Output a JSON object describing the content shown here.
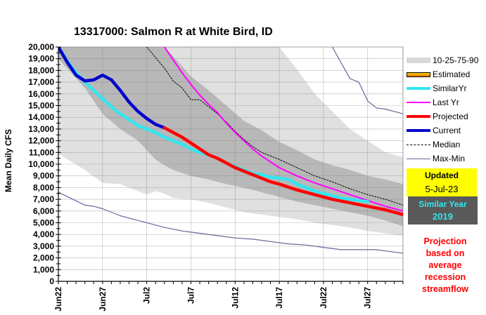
{
  "header": {
    "title": "13317000: Salmon R at White Bird, ID"
  },
  "legend": {
    "items": [
      {
        "label": "10-25-75-90",
        "icon": "band-swatch",
        "color": "#d9d9d9"
      },
      {
        "label": "Estimated",
        "icon": "estimated-swatch",
        "color": "#ffa500"
      },
      {
        "label": "SimilarYr",
        "icon": "line-swatch",
        "color": "#33e6ef"
      },
      {
        "label": "Last Yr",
        "icon": "line-swatch",
        "color": "#ff00ff"
      },
      {
        "label": "Projected",
        "icon": "line-swatch",
        "color": "#ff0000"
      },
      {
        "label": "Current",
        "icon": "line-swatch",
        "color": "#0000cc"
      },
      {
        "label": "Median",
        "icon": "dashed-line-swatch",
        "color": "#000000"
      },
      {
        "label": "Max-Min",
        "icon": "line-swatch",
        "color": "#666699"
      }
    ]
  },
  "info": {
    "updated_label": "Updated",
    "updated_date": "5-Jul-23",
    "similar_label": "Similar Year",
    "similar_year": "2019",
    "note_lines": [
      "Projection",
      "based on",
      "average",
      "recession",
      "streamflow"
    ]
  },
  "chart_data": {
    "type": "line",
    "title": "13317000: Salmon R at White Bird, ID",
    "xlabel": "",
    "ylabel": "Mean Daily CFS",
    "ylim": [
      0,
      20000
    ],
    "xlim_days": [
      0,
      39
    ],
    "x_start": "Jun22",
    "x_tick_labels": [
      "Jun22",
      "Jun27",
      "Jul2",
      "Jul7",
      "Jul12",
      "Jul17",
      "Jul22",
      "Jul27"
    ],
    "x_tick_days": [
      0,
      5,
      10,
      15,
      20,
      25,
      30,
      35
    ],
    "y_tick_labels": [
      "0",
      "1,000",
      "2,000",
      "3,000",
      "4,000",
      "5,000",
      "6,000",
      "7,000",
      "8,000",
      "9,000",
      "10,000",
      "11,000",
      "12,000",
      "13,000",
      "14,000",
      "15,000",
      "16,000",
      "17,000",
      "18,000",
      "19,000",
      "20,000"
    ],
    "y_ticks": [
      0,
      1000,
      2000,
      3000,
      4000,
      5000,
      6000,
      7000,
      8000,
      9000,
      10000,
      11000,
      12000,
      13000,
      14000,
      15000,
      16000,
      17000,
      18000,
      19000,
      20000
    ],
    "grid": true,
    "legend_position": "right",
    "bands": {
      "x": [
        0,
        3,
        5,
        7,
        9,
        10,
        11,
        12,
        13,
        15,
        17,
        19,
        21,
        23,
        25,
        27,
        29,
        31,
        33,
        35,
        37,
        39
      ],
      "p10": [
        10900,
        9500,
        8400,
        8300,
        7700,
        7400,
        7700,
        7500,
        7100,
        7000,
        6700,
        6300,
        5900,
        5700,
        5500,
        5300,
        5000,
        4800,
        4600,
        4300,
        4100,
        3900
      ],
      "p25": [
        19000,
        16500,
        14300,
        13000,
        12000,
        11200,
        10400,
        9900,
        9500,
        9000,
        8700,
        8300,
        8000,
        7600,
        7200,
        6800,
        6500,
        6200,
        5900,
        5600,
        5200,
        4700
      ],
      "p75": [
        20000,
        20000,
        20000,
        20000,
        20000,
        20000,
        20000,
        20000,
        19200,
        17500,
        16300,
        15000,
        13700,
        12900,
        11900,
        11200,
        10400,
        9900,
        9500,
        9000,
        8700,
        8300
      ],
      "p90": [
        20000,
        20000,
        20000,
        20000,
        20000,
        20000,
        20000,
        20000,
        20000,
        20000,
        20000,
        20000,
        20000,
        20000,
        20000,
        18100,
        16000,
        14500,
        13000,
        12000,
        11000,
        10600
      ]
    },
    "series": [
      {
        "name": "Max",
        "color": "#666699",
        "x": [
          31,
          33,
          34,
          35,
          36,
          37,
          39
        ],
        "values": [
          20000,
          17300,
          17000,
          15400,
          14800,
          14700,
          14300
        ]
      },
      {
        "name": "Min",
        "color": "#666699",
        "x": [
          0,
          3,
          4,
          5,
          6,
          7,
          8,
          9,
          11,
          12,
          14,
          15,
          16,
          18,
          20,
          22,
          24,
          26,
          28,
          30,
          32,
          34,
          36,
          38,
          39
        ],
        "values": [
          7600,
          6500,
          6400,
          6200,
          5900,
          5600,
          5400,
          5200,
          4800,
          4600,
          4300,
          4200,
          4100,
          3900,
          3700,
          3600,
          3400,
          3200,
          3100,
          2900,
          2700,
          2700,
          2700,
          2500,
          2400
        ]
      },
      {
        "name": "Median",
        "color": "#000000",
        "dashed": true,
        "x": [
          10,
          12,
          13,
          14,
          15,
          16,
          17,
          18,
          19,
          20,
          21,
          22,
          23,
          25,
          27,
          29,
          31,
          33,
          35,
          37,
          39
        ],
        "values": [
          20000,
          18200,
          17100,
          16500,
          15500,
          15500,
          14900,
          14300,
          13600,
          12800,
          12100,
          11500,
          11000,
          10400,
          9700,
          9000,
          8500,
          7900,
          7400,
          7000,
          6500
        ]
      },
      {
        "name": "Last Yr",
        "color": "#ff00ff",
        "x": [
          12,
          13,
          14,
          15,
          16,
          17,
          18,
          19,
          20,
          21,
          22,
          23,
          24,
          25,
          27,
          29,
          31,
          33,
          35,
          37,
          39
        ],
        "values": [
          20000,
          18900,
          17800,
          16800,
          15900,
          15100,
          14400,
          13500,
          12700,
          12000,
          11300,
          10700,
          10200,
          9700,
          9000,
          8400,
          7900,
          7400,
          6900,
          6400,
          6000
        ]
      },
      {
        "name": "SimilarYr",
        "color": "#33e6ef",
        "x": [
          0,
          1,
          2,
          3,
          4,
          5,
          6,
          7,
          8,
          9,
          10,
          11,
          12,
          13,
          14,
          15,
          16,
          17,
          18,
          19,
          20,
          21,
          22,
          23,
          24,
          25,
          26,
          27,
          28,
          29,
          30,
          31,
          32,
          33,
          34,
          35
        ],
        "values": [
          20000,
          18800,
          17800,
          17000,
          16300,
          15600,
          14900,
          14300,
          13800,
          13300,
          13000,
          12700,
          12300,
          12000,
          11700,
          11300,
          11000,
          10800,
          10500,
          10100,
          9800,
          9500,
          9200,
          9100,
          8900,
          8800,
          8700,
          8300,
          8000,
          7700,
          7500,
          7300,
          7100,
          7000,
          6900,
          6800
        ]
      },
      {
        "name": "Current",
        "color": "#0000cc",
        "x": [
          0,
          1,
          2,
          3,
          4,
          5,
          6,
          7,
          8,
          9,
          10,
          11,
          12
        ],
        "values": [
          20000,
          18700,
          17600,
          17100,
          17200,
          17600,
          17200,
          16300,
          15300,
          14500,
          13900,
          13400,
          13100
        ]
      },
      {
        "name": "Projected",
        "color": "#ff0000",
        "x": [
          12,
          13,
          14,
          15,
          16,
          17,
          18,
          19,
          20,
          21,
          22,
          23,
          24,
          25,
          27,
          29,
          31,
          33,
          35,
          37,
          39
        ],
        "values": [
          13100,
          12700,
          12300,
          11800,
          11300,
          10800,
          10500,
          10100,
          9700,
          9400,
          9100,
          8800,
          8500,
          8300,
          7800,
          7400,
          7000,
          6700,
          6400,
          6100,
          5700
        ]
      }
    ]
  }
}
